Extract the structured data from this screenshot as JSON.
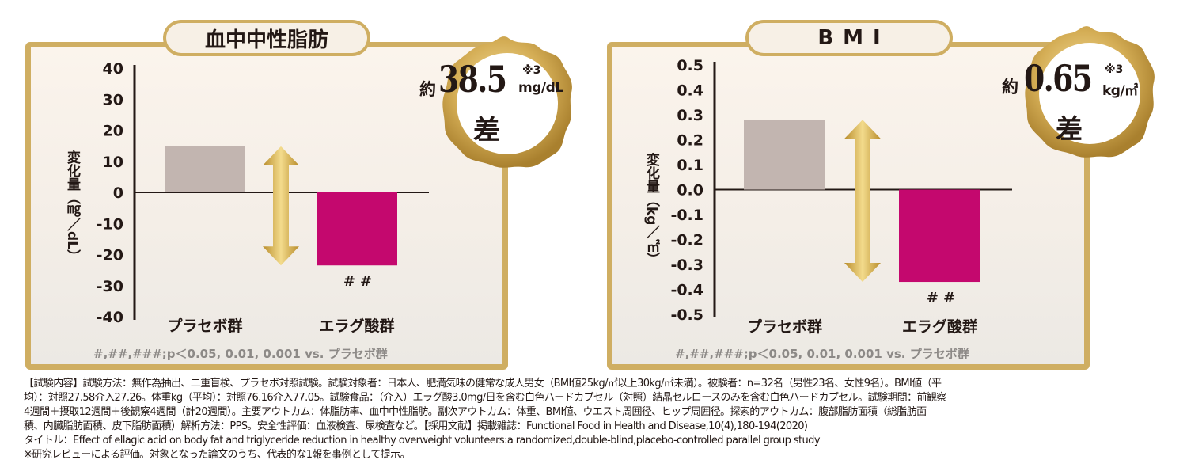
{
  "colors": {
    "gold": "#cfae62",
    "placebo_bar": "#c2b5b0",
    "ellagic_bar": "#c4086e",
    "note_gray": "#8d8a87"
  },
  "chart_data": [
    {
      "type": "bar",
      "title": "血中中性脂肪",
      "ylabel": "変化量（㎎／dL）",
      "categories": [
        "プラセボ群",
        "エラグ酸群"
      ],
      "values": [
        14.8,
        -23.5
      ],
      "ylim": [
        -40,
        40
      ],
      "yticks": [
        "40",
        "30",
        "20",
        "10",
        "0",
        "-10",
        "-20",
        "-30",
        "-40"
      ],
      "significance": [
        "",
        "##"
      ],
      "note": "#,##,###;p＜0.05, 0.01, 0.001 vs. プラセボ群",
      "badge": {
        "prefix": "約",
        "value": "38.5",
        "ref": "※3",
        "unit": "mg/dL",
        "suffix": "差"
      }
    },
    {
      "type": "bar",
      "title": "BMI",
      "ylabel": "変化量（kg／㎡）",
      "categories": [
        "プラセボ群",
        "エラグ酸群"
      ],
      "values": [
        0.28,
        -0.37
      ],
      "ylim": [
        -0.5,
        0.5
      ],
      "yticks": [
        "0.5",
        "0.4",
        "0.3",
        "0.2",
        "0.1",
        "0.0",
        "-0.1",
        "-0.2",
        "-0.3",
        "-0.4",
        "-0.5"
      ],
      "significance": [
        "",
        "##"
      ],
      "note": "#,##,###;p＜0.05, 0.01, 0.001 vs. プラセボ群",
      "badge": {
        "prefix": "約",
        "value": "0.65",
        "ref": "※3",
        "unit": "kg/㎡",
        "suffix": "差"
      }
    }
  ],
  "footnotes": [
    "【試験内容】試験方法：無作為抽出、二重盲検、プラセボ対照試験。試験対象者：日本人、肥満気味の健常な成人男女（BMI値25kg/㎡以上30kg/㎡未満）。被験者：n=32名（男性23名、女性9名）。BMI値（平",
    "均）：対照27.58介入27.26。体重kg（平均）：対照76.16介入77.05。試験食品：（介入）エラグ酸3.0mg/日を含む白色ハードカプセル（対照）結晶セルロースのみを含む白色ハードカプセル。試験期間：前観察",
    "4週間＋摂取12週間＋後観察4週間（計20週間）。主要アウトカム：体脂肪率、血中中性脂肪。副次アウトカム：体重、BMI値、ウエスト周囲径、ヒップ周囲径。探索的アウトカム：腹部脂肪面積（総脂肪面",
    "積、内臓脂肪面積、皮下脂肪面積）解析方法：PPS。安全性評価：血液検査、尿検査など。【採用文献】掲載雑誌：Functional Food in Health and Disease,10(4),180-194(2020)",
    "タイトル：Effect of ellagic acid on body fat and triglyceride reduction in healthy overweight volunteers:a randomized,double-blind,placebo-controlled parallel group study",
    "※研究レビューによる評価。対象となった論文のうち、代表的な1報を事例として提示。"
  ]
}
